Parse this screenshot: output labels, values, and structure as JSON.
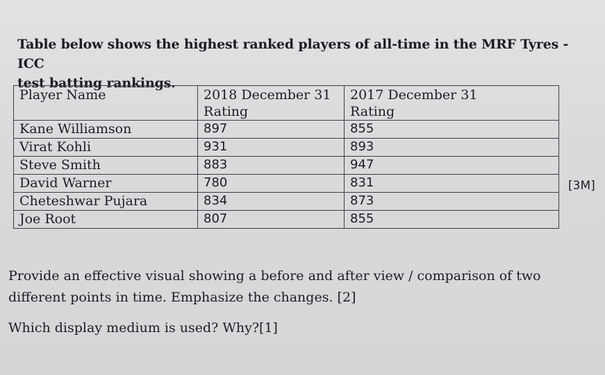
{
  "intro": {
    "line1": "Table below shows the highest ranked players of all-time in the MRF Tyres -ICC",
    "line2": "test batting rankings."
  },
  "table": {
    "headers": {
      "player": "Player Name",
      "col2018_line1": "2018 December 31",
      "col2018_line2": "Rating",
      "col2017_line1": "2017 December 31",
      "col2017_line2": "Rating"
    },
    "rows": [
      {
        "player": "Kane Williamson",
        "rating_2018": "897",
        "rating_2017": "855"
      },
      {
        "player": "Virat Kohli",
        "rating_2018": "931",
        "rating_2017": "893"
      },
      {
        "player": "Steve Smith",
        "rating_2018": "883",
        "rating_2017": "947"
      },
      {
        "player": "David Warner",
        "rating_2018": "780",
        "rating_2017": "831"
      },
      {
        "player": "Cheteshwar Pujara",
        "rating_2018": "834",
        "rating_2017": "873"
      },
      {
        "player": "Joe Root",
        "rating_2018": "807",
        "rating_2017": "855"
      }
    ]
  },
  "marks": "[3M]",
  "question1": {
    "line1": "Provide an effective visual showing a before and after view / comparison of two",
    "line2": "different points in time. Emphasize the changes. [2]"
  },
  "question2": "Which display medium is used? Why?[1]"
}
